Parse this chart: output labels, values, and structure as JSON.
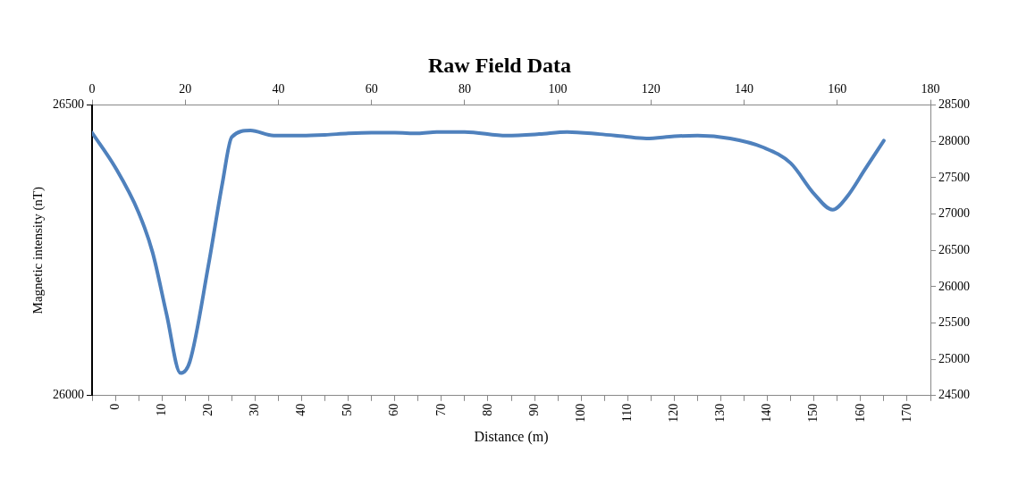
{
  "chart_data": {
    "type": "line",
    "title": "Raw Field Data",
    "x2label": "Distance (m)",
    "ylabel": "Magnetic intensity (nT)",
    "xlim": [
      0,
      180
    ],
    "xticks": [
      0,
      20,
      40,
      60,
      80,
      100,
      120,
      140,
      160,
      180
    ],
    "x2lim": [
      -5,
      175
    ],
    "x2ticks": [
      {
        "value": -5,
        "label": null
      },
      0,
      {
        "value": 5,
        "label": null
      },
      10,
      {
        "value": 15,
        "label": null
      },
      20,
      {
        "value": 25,
        "label": null
      },
      30,
      {
        "value": 35,
        "label": null
      },
      40,
      {
        "value": 45,
        "label": null
      },
      50,
      {
        "value": 55,
        "label": null
      },
      60,
      {
        "value": 65,
        "label": null
      },
      70,
      {
        "value": 75,
        "label": null
      },
      80,
      {
        "value": 85,
        "label": null
      },
      90,
      {
        "value": 95,
        "label": null
      },
      100,
      {
        "value": 105,
        "label": null
      },
      110,
      {
        "value": 115,
        "label": null
      },
      120,
      {
        "value": 125,
        "label": null
      },
      130,
      {
        "value": 135,
        "label": null
      },
      140,
      {
        "value": 145,
        "label": null
      },
      150,
      {
        "value": 155,
        "label": null
      },
      160,
      {
        "value": 165,
        "label": null
      },
      170,
      {
        "value": 175,
        "label": null
      }
    ],
    "ylim": [
      26000,
      26500
    ],
    "yticks": [
      26000,
      26500
    ],
    "y2lim": [
      24500,
      28500
    ],
    "y2ticks": [
      24500,
      25000,
      25500,
      26000,
      26500,
      27000,
      27500,
      28000,
      28500
    ],
    "grid": false,
    "legend": false,
    "marker": "none",
    "line_style": "solid",
    "series": [
      {
        "color": "#4f81bd",
        "axis": "y2",
        "x": [
          0,
          5,
          10,
          13,
          16,
          19,
          21,
          25,
          28,
          30,
          34,
          39,
          45,
          50,
          55,
          60,
          65,
          70,
          74,
          80,
          89,
          96,
          102,
          109,
          114,
          119,
          125,
          130,
          137,
          144,
          150,
          155,
          159,
          162,
          166,
          170
        ],
        "values": [
          28120,
          27640,
          27020,
          26470,
          25620,
          24810,
          24970,
          26300,
          27430,
          28060,
          28150,
          28080,
          28080,
          28090,
          28110,
          28120,
          28120,
          28110,
          28130,
          28130,
          28080,
          28100,
          28130,
          28100,
          28070,
          28040,
          28070,
          28080,
          28040,
          27920,
          27700,
          27280,
          27060,
          27230,
          27620,
          28010
        ]
      }
    ]
  }
}
